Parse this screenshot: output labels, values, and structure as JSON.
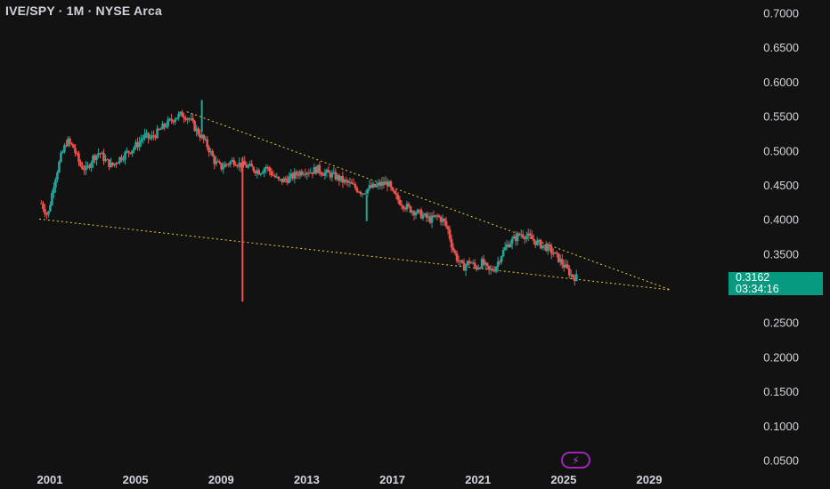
{
  "header": {
    "title": "IVE/SPY · 1M · NYSE Arca"
  },
  "price_badge": {
    "value": "0.3162",
    "countdown": "03:34:16"
  },
  "colors": {
    "background": "#121212",
    "up": "#26a69a",
    "down": "#ef5350",
    "trendline": "#e6d03a",
    "badge": "#089981",
    "text": "#d1d4dc"
  },
  "icons": {
    "events_badge": "lightning-icon"
  },
  "chart_data": {
    "type": "candlestick",
    "title": "IVE/SPY · 1M · NYSE Arca",
    "xlabel": "",
    "ylabel": "",
    "x_ticks": [
      "2001",
      "2005",
      "2009",
      "2013",
      "2017",
      "2021",
      "2025",
      "2029"
    ],
    "y_ticks": [
      "0.7000",
      "0.6500",
      "0.6000",
      "0.5500",
      "0.5000",
      "0.4500",
      "0.4000",
      "0.3500",
      "0.3000",
      "0.2500",
      "0.2000",
      "0.1500",
      "0.1000",
      "0.0500"
    ],
    "ylim": [
      0.04,
      0.71
    ],
    "xlim": [
      2000.0,
      2032.5
    ],
    "grid": false,
    "last_price": 0.3162,
    "trendlines": [
      {
        "name": "upper",
        "points": [
          [
            2007.4,
            0.557
          ],
          [
            2030.0,
            0.298
          ]
        ]
      },
      {
        "name": "lower",
        "points": [
          [
            2000.5,
            0.401
          ],
          [
            2030.0,
            0.298
          ]
        ]
      }
    ],
    "closes": [
      [
        2000.6,
        0.424
      ],
      [
        2000.9,
        0.405
      ],
      [
        2001.2,
        0.455
      ],
      [
        2001.5,
        0.49
      ],
      [
        2001.8,
        0.515
      ],
      [
        2002.1,
        0.505
      ],
      [
        2002.4,
        0.48
      ],
      [
        2002.7,
        0.472
      ],
      [
        2003.0,
        0.49
      ],
      [
        2003.3,
        0.498
      ],
      [
        2003.6,
        0.486
      ],
      [
        2003.9,
        0.478
      ],
      [
        2004.2,
        0.488
      ],
      [
        2004.5,
        0.495
      ],
      [
        2004.8,
        0.502
      ],
      [
        2005.1,
        0.51
      ],
      [
        2005.4,
        0.522
      ],
      [
        2005.7,
        0.518
      ],
      [
        2006.0,
        0.526
      ],
      [
        2006.3,
        0.535
      ],
      [
        2006.6,
        0.543
      ],
      [
        2006.9,
        0.55
      ],
      [
        2007.2,
        0.553
      ],
      [
        2007.5,
        0.548
      ],
      [
        2007.8,
        0.532
      ],
      [
        2008.1,
        0.52
      ],
      [
        2008.4,
        0.505
      ],
      [
        2008.7,
        0.484
      ],
      [
        2009.0,
        0.476
      ],
      [
        2009.3,
        0.482
      ],
      [
        2009.6,
        0.486
      ],
      [
        2009.9,
        0.48
      ],
      [
        2010.2,
        0.478
      ],
      [
        2010.5,
        0.474
      ],
      [
        2010.8,
        0.47
      ],
      [
        2011.1,
        0.477
      ],
      [
        2011.4,
        0.466
      ],
      [
        2011.7,
        0.456
      ],
      [
        2012.0,
        0.458
      ],
      [
        2012.3,
        0.462
      ],
      [
        2012.6,
        0.468
      ],
      [
        2012.9,
        0.472
      ],
      [
        2013.2,
        0.47
      ],
      [
        2013.5,
        0.474
      ],
      [
        2013.8,
        0.468
      ],
      [
        2014.1,
        0.466
      ],
      [
        2014.4,
        0.462
      ],
      [
        2014.7,
        0.456
      ],
      [
        2015.0,
        0.452
      ],
      [
        2015.3,
        0.446
      ],
      [
        2015.6,
        0.44
      ],
      [
        2015.9,
        0.446
      ],
      [
        2016.2,
        0.448
      ],
      [
        2016.5,
        0.452
      ],
      [
        2016.8,
        0.454
      ],
      [
        2017.0,
        0.438
      ],
      [
        2017.3,
        0.428
      ],
      [
        2017.6,
        0.42
      ],
      [
        2017.9,
        0.414
      ],
      [
        2018.2,
        0.41
      ],
      [
        2018.5,
        0.404
      ],
      [
        2018.8,
        0.4
      ],
      [
        2019.1,
        0.405
      ],
      [
        2019.4,
        0.398
      ],
      [
        2019.6,
        0.385
      ],
      [
        2019.8,
        0.36
      ],
      [
        2020.0,
        0.345
      ],
      [
        2020.3,
        0.33
      ],
      [
        2020.6,
        0.34
      ],
      [
        2020.9,
        0.33
      ],
      [
        2021.2,
        0.338
      ],
      [
        2021.5,
        0.325
      ],
      [
        2021.8,
        0.33
      ],
      [
        2022.1,
        0.35
      ],
      [
        2022.4,
        0.365
      ],
      [
        2022.7,
        0.372
      ],
      [
        2023.0,
        0.38
      ],
      [
        2023.3,
        0.376
      ],
      [
        2023.6,
        0.37
      ],
      [
        2023.9,
        0.364
      ],
      [
        2024.2,
        0.36
      ],
      [
        2024.5,
        0.352
      ],
      [
        2024.8,
        0.342
      ],
      [
        2025.1,
        0.33
      ],
      [
        2025.4,
        0.318
      ],
      [
        2025.6,
        0.316
      ]
    ],
    "wicks": [
      {
        "x": 2010.0,
        "high": 0.49,
        "low": 0.281,
        "direction": "down"
      },
      {
        "x": 2008.1,
        "high": 0.574,
        "low": 0.528,
        "direction": "up"
      },
      {
        "x": 2015.8,
        "high": 0.435,
        "low": 0.398,
        "direction": "up"
      }
    ]
  }
}
